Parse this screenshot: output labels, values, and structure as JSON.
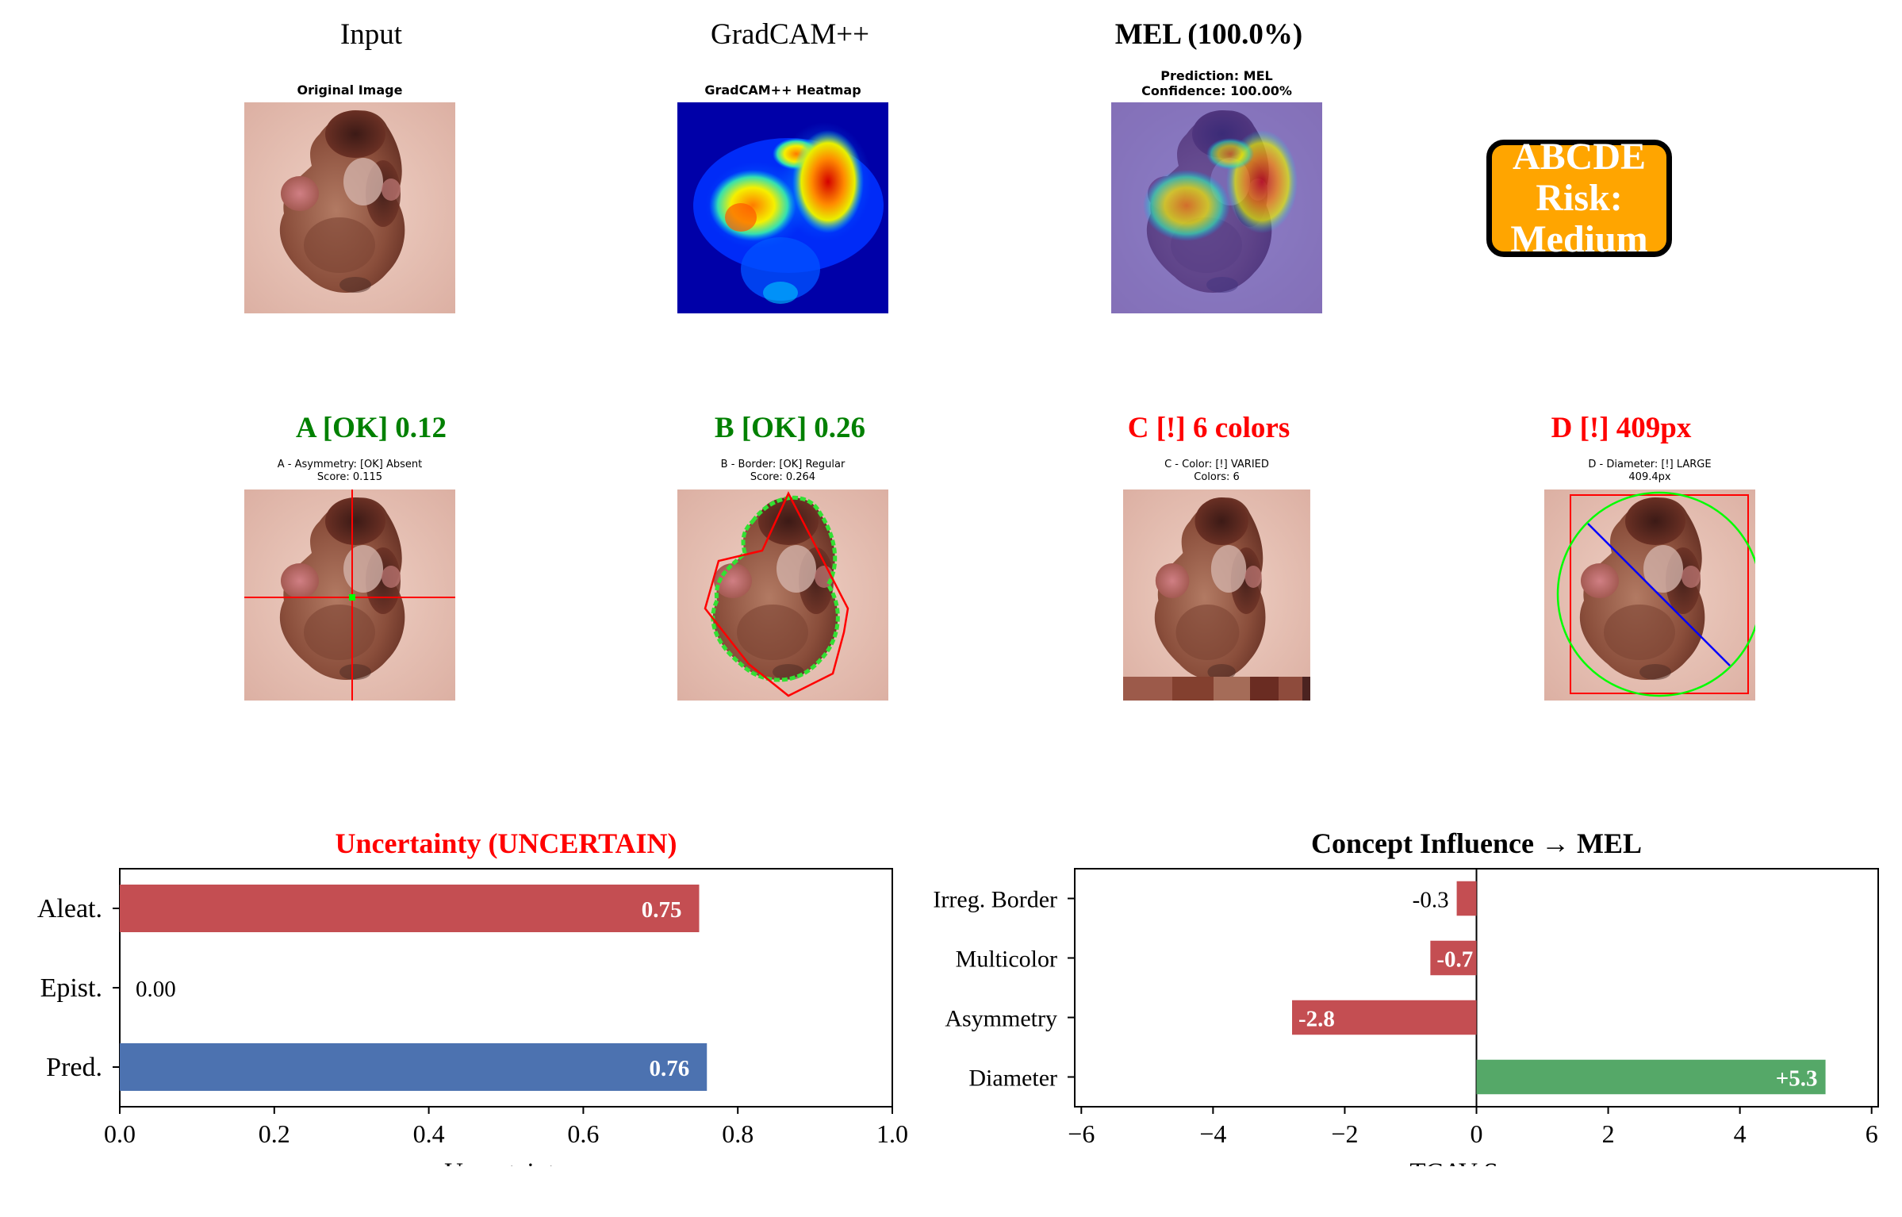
{
  "panels": {
    "input": {
      "title": "Input",
      "subtitle": "Original Image"
    },
    "gradcam": {
      "title": "GradCAM++",
      "subtitle": "GradCAM++ Heatmap"
    },
    "prediction": {
      "title": "MEL (100.0%)",
      "subtitle_line1": "Prediction: MEL",
      "subtitle_line2": "Confidence: 100.00%"
    },
    "risk_box": {
      "line1": "ABCDE Risk:",
      "line2": "Medium",
      "color": "#ffa500"
    }
  },
  "abcde": {
    "a": {
      "title": "A [OK] 0.12",
      "line1": "A - Asymmetry: [OK] Absent",
      "line2": "Score: 0.115",
      "color": "#008000"
    },
    "b": {
      "title": "B [OK] 0.26",
      "line1": "B - Border: [OK] Regular",
      "line2": "Score: 0.264",
      "color": "#008000"
    },
    "c": {
      "title": "C [!] 6 colors",
      "line1": "C - Color: [!] VARIED",
      "line2": "Colors: 6",
      "color": "#ff0000",
      "swatches": [
        "#9c5a4a",
        "#83402f",
        "#a56c58",
        "#6a2c22",
        "#8e4b3c",
        "#4b2320"
      ]
    },
    "d": {
      "title": "D [!] 409px",
      "line1": "D - Diameter: [!] LARGE",
      "line2": "409.4px",
      "color": "#ff0000"
    }
  },
  "chart_data": [
    {
      "type": "bar",
      "orientation": "horizontal",
      "title": "Uncertainty (UNCERTAIN)",
      "title_color": "#ff0000",
      "categories": [
        "Aleat.",
        "Epist.",
        "Pred."
      ],
      "values": [
        0.75,
        0.0,
        0.76
      ],
      "value_labels": [
        "0.75",
        "0.00",
        "0.76"
      ],
      "colors": [
        "#c44e52",
        "#c44e52",
        "#4c72b0"
      ],
      "xlabel": "Uncertainty",
      "xlim": [
        0.0,
        1.0
      ],
      "xticks": [
        "0.0",
        "0.2",
        "0.4",
        "0.6",
        "0.8",
        "1.0"
      ]
    },
    {
      "type": "bar",
      "orientation": "horizontal",
      "title": "Concept Influence → MEL",
      "title_color": "#000000",
      "categories": [
        "Irreg. Border",
        "Multicolor",
        "Asymmetry",
        "Diameter"
      ],
      "values": [
        -0.3,
        -0.7,
        -2.8,
        5.3
      ],
      "value_labels": [
        "-0.3",
        "-0.7",
        "-2.8",
        "+5.3"
      ],
      "colors": [
        "#c44e52",
        "#c44e52",
        "#c44e52",
        "#55a868"
      ],
      "xlabel": "TCAV Score",
      "xlim": [
        -6.1,
        6.1
      ],
      "xticks": [
        "−6",
        "−4",
        "−2",
        "0",
        "2",
        "4",
        "6"
      ]
    }
  ]
}
